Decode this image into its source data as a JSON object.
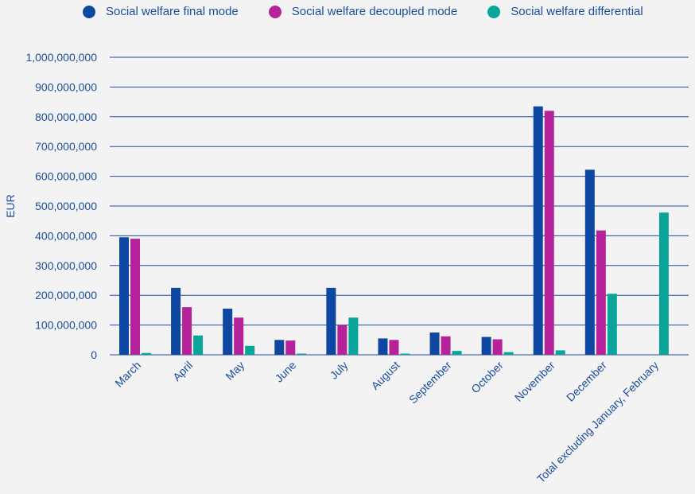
{
  "chart_data": {
    "type": "bar",
    "categories": [
      "March",
      "April",
      "May",
      "June",
      "July",
      "August",
      "September",
      "October",
      "November",
      "December",
      "Total excluding January, February"
    ],
    "series": [
      {
        "name": "Social welfare final mode",
        "color": "#0d47a1",
        "values": [
          395000000,
          225000000,
          155000000,
          50000000,
          225000000,
          55000000,
          75000000,
          60000000,
          835000000,
          622000000,
          null
        ]
      },
      {
        "name": "Social welfare decoupled mode",
        "color": "#b5229a",
        "values": [
          390000000,
          160000000,
          125000000,
          48000000,
          100000000,
          50000000,
          62000000,
          52000000,
          820000000,
          418000000,
          null
        ]
      },
      {
        "name": "Social welfare differential",
        "color": "#0aa59a",
        "values": [
          6000000,
          65000000,
          30000000,
          4000000,
          125000000,
          4000000,
          13000000,
          9000000,
          15000000,
          205000000,
          478000000
        ]
      }
    ],
    "ylabel": "EUR",
    "ylim": [
      0,
      1000000000
    ],
    "yticks": [
      "0",
      "100,000,000",
      "200,000,000",
      "300,000,000",
      "400,000,000",
      "500,000,000",
      "600,000,000",
      "700,000,000",
      "800,000,000",
      "900,000,000",
      "1,000,000,000"
    ],
    "grid": true,
    "legend_position": "top-left"
  }
}
